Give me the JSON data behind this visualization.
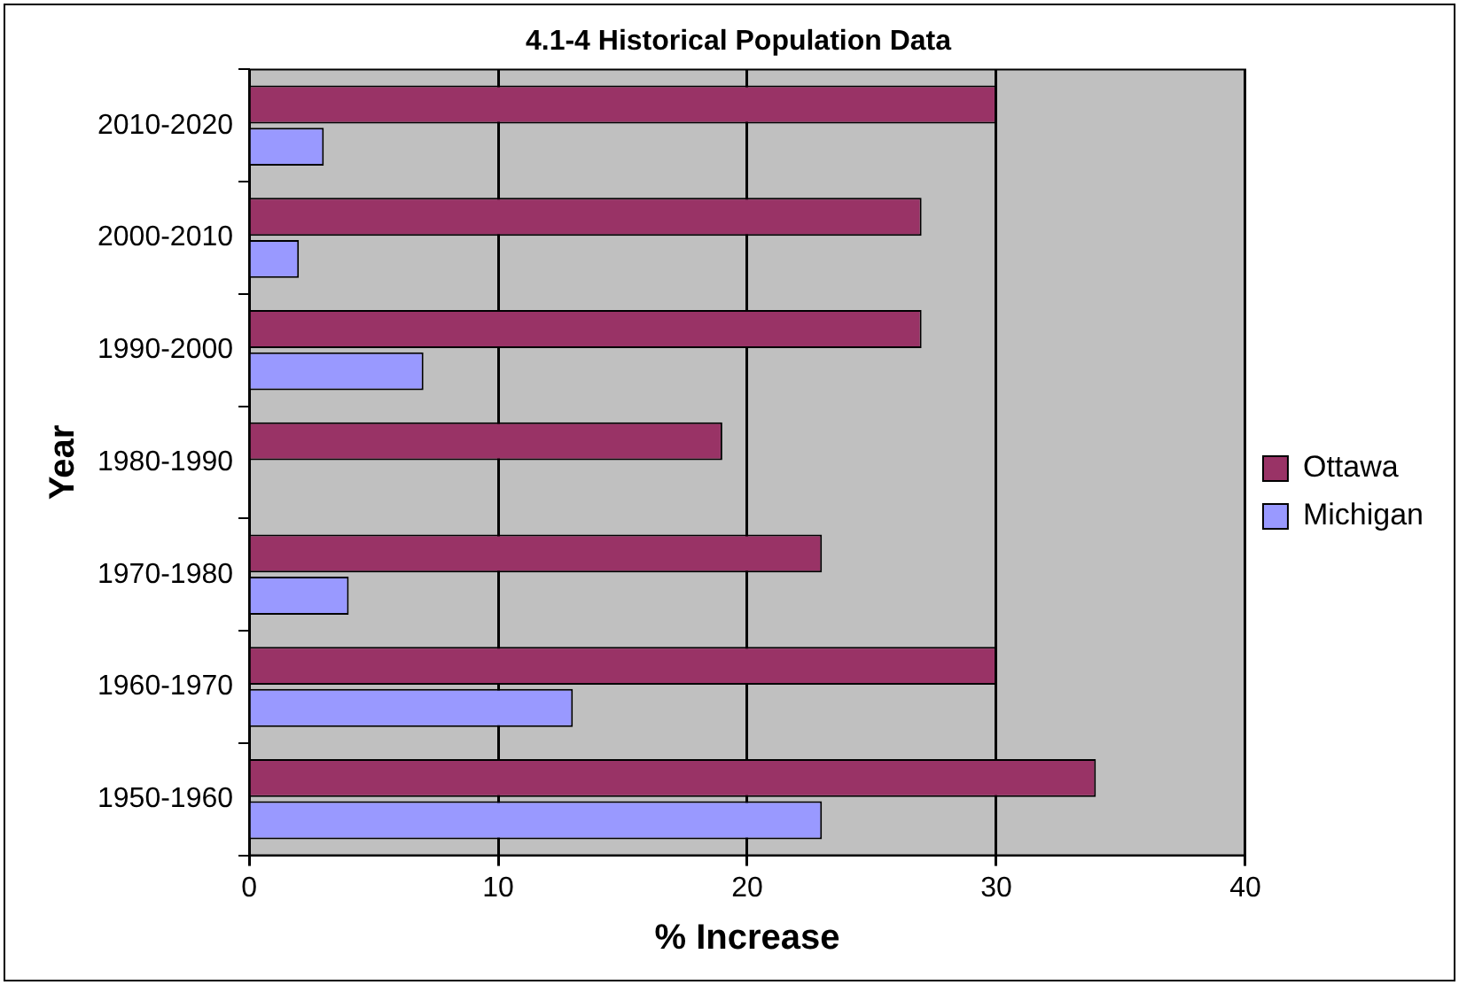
{
  "chart_data": {
    "type": "bar",
    "orientation": "horizontal",
    "title": "4.1-4 Historical Population Data",
    "xlabel": "% Increase",
    "ylabel": "Year",
    "categories": [
      "2010-2020",
      "2000-2010",
      "1990-2000",
      "1980-1990",
      "1970-1980",
      "1960-1970",
      "1950-1960"
    ],
    "series": [
      {
        "name": "Ottawa",
        "color": "#993366",
        "values": [
          30,
          27,
          27,
          19,
          23,
          30,
          34
        ]
      },
      {
        "name": "Michigan",
        "color": "#9999ff",
        "values": [
          3,
          2,
          7,
          null,
          4,
          13,
          23
        ]
      }
    ],
    "xlim": [
      0,
      40
    ],
    "xticks": [
      0,
      10,
      20,
      30,
      40
    ],
    "grid": "x",
    "legend": "right"
  }
}
